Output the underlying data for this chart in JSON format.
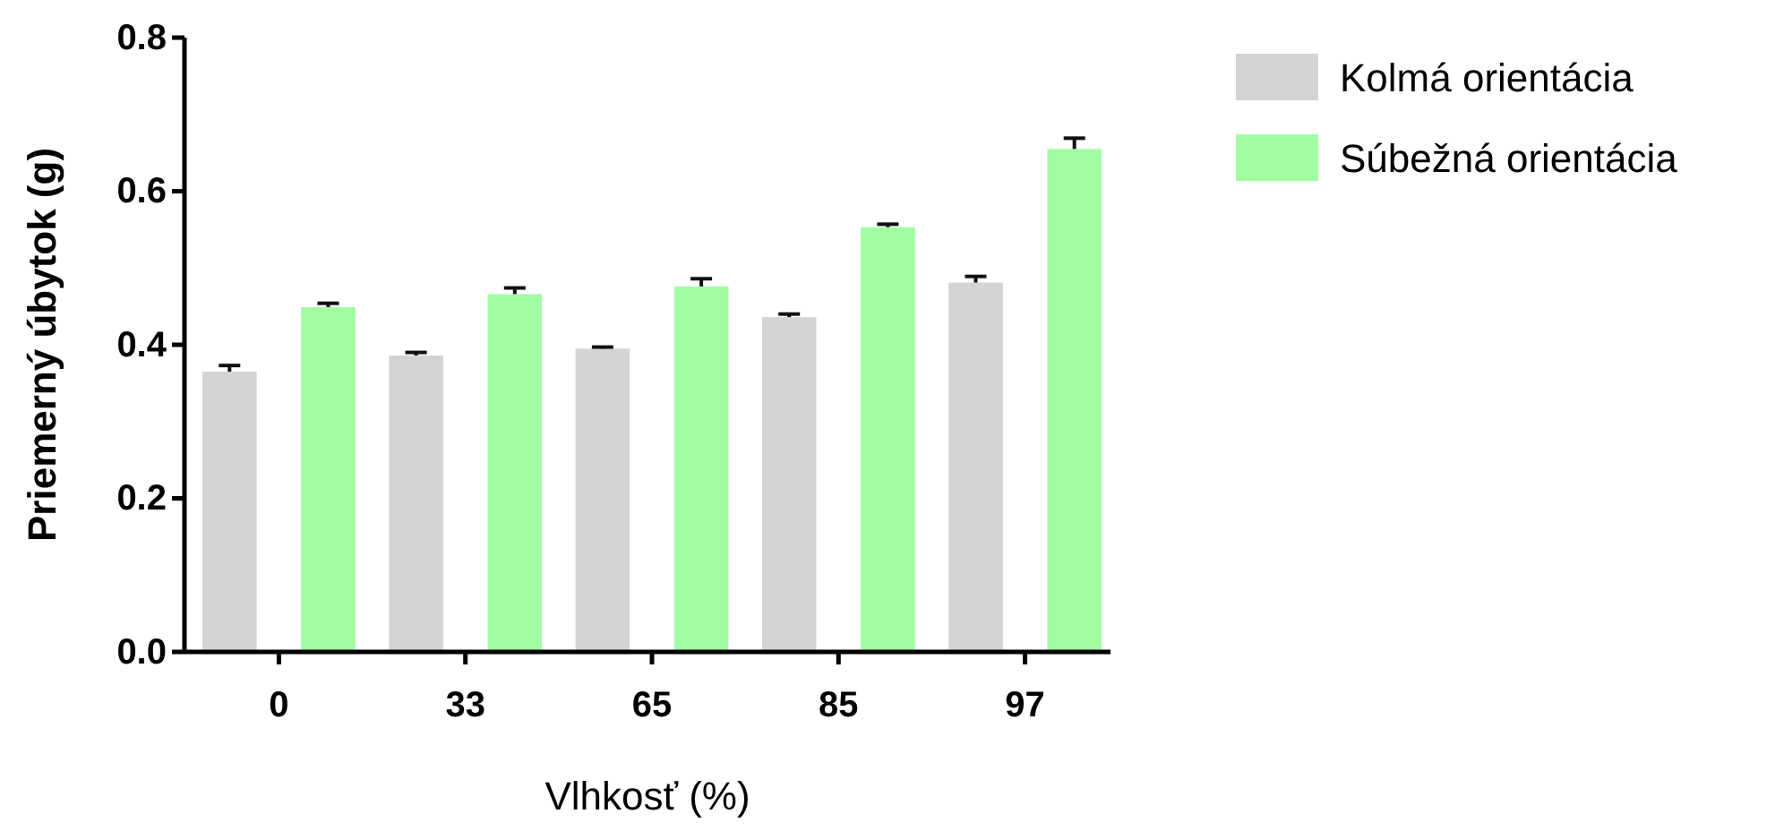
{
  "chart_data": {
    "type": "bar",
    "xlabel": "Vlhkosť (%)",
    "ylabel": "Priemerný úbytok (g)",
    "categories": [
      "0",
      "33",
      "65",
      "85",
      "97"
    ],
    "series": [
      {
        "name": "Kolmá orientácia",
        "color": "#d4d4d4",
        "values": [
          0.365,
          0.386,
          0.395,
          0.436,
          0.481
        ],
        "errors": [
          [
            0.365,
            0.373
          ],
          [
            0.386,
            0.39
          ],
          [
            0.395,
            0.397
          ],
          [
            0.436,
            0.44
          ],
          [
            0.481,
            0.489
          ]
        ]
      },
      {
        "name": "Súbežná orientácia",
        "color": "#a2fda2",
        "values": [
          0.449,
          0.466,
          0.476,
          0.553,
          0.655
        ],
        "errors": [
          [
            0.449,
            0.454
          ],
          [
            0.466,
            0.474
          ],
          [
            0.476,
            0.486
          ],
          [
            0.553,
            0.557
          ],
          [
            0.655,
            0.669
          ]
        ]
      }
    ],
    "ylim": [
      0,
      0.8
    ],
    "yticks": [
      {
        "value": 0,
        "label": "0.0"
      },
      0.2,
      0.4,
      0.6,
      0.8
    ],
    "grid": false,
    "legend": "top right"
  }
}
